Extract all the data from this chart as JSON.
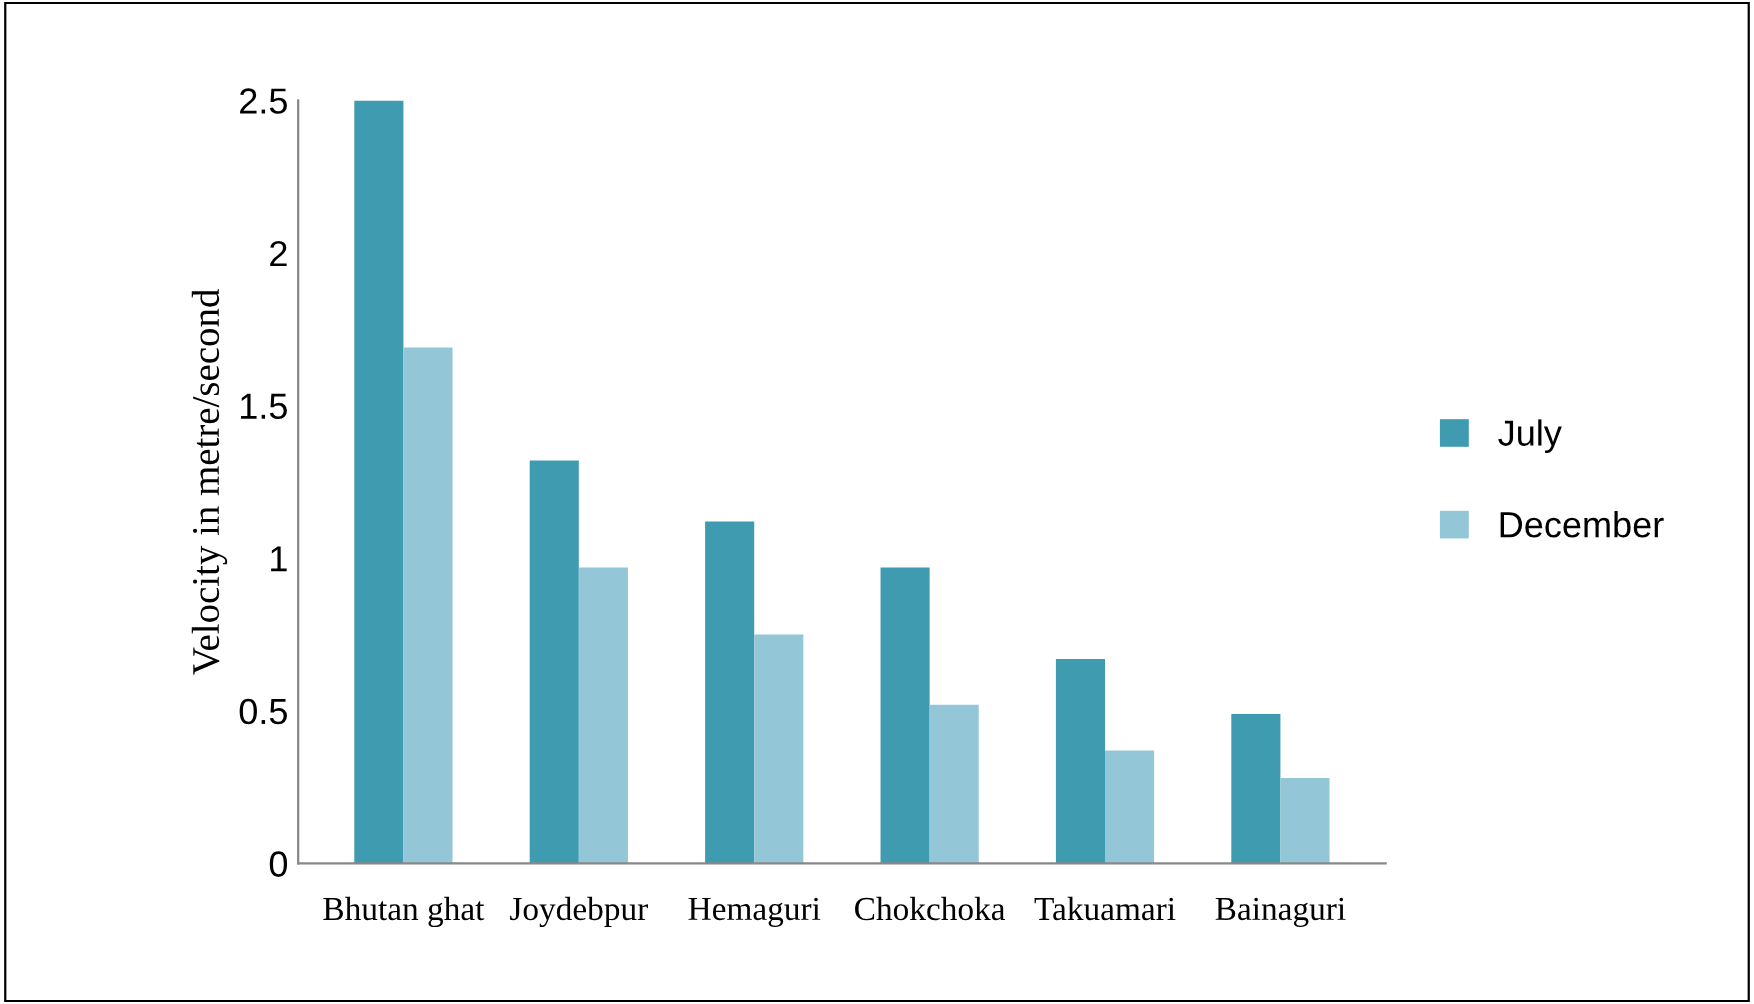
{
  "chart_data": {
    "type": "bar",
    "ylabel": "Velocity in metre/second",
    "categories": [
      "Bhutan ghat",
      "Joydebpur",
      "Hemaguri",
      "Chokchoka",
      "Takuamari",
      "Bainaguri"
    ],
    "series": [
      {
        "name": "July",
        "color": "#3f9bb0",
        "values": [
          2.5,
          1.32,
          1.12,
          0.97,
          0.67,
          0.49
        ]
      },
      {
        "name": "December",
        "color": "#93c6d6",
        "values": [
          1.69,
          0.97,
          0.75,
          0.52,
          0.37,
          0.28
        ]
      }
    ],
    "ylim": [
      0,
      2.5
    ],
    "yticks": [
      0,
      0.5,
      1,
      1.5,
      2,
      2.5
    ],
    "grid": false,
    "legend": "right"
  }
}
